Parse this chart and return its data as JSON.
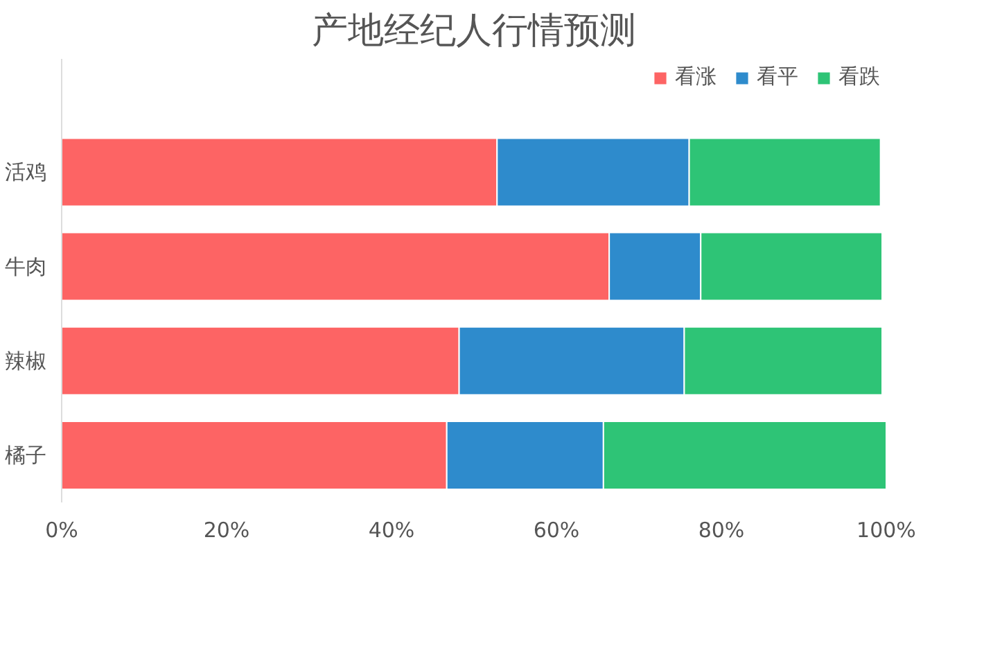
{
  "chart_data": {
    "type": "bar",
    "orientation": "horizontal",
    "stacked": true,
    "title": "产地经纪人行情预测",
    "categories": [
      "活鸡",
      "牛肉",
      "辣椒",
      "橘子"
    ],
    "series": [
      {
        "name": "看涨",
        "color": "#fd6464",
        "values": [
          52.8,
          66.4,
          48.2,
          46.7
        ]
      },
      {
        "name": "看平",
        "color": "#2e8bcc",
        "values": [
          23.3,
          11.1,
          27.3,
          19.0
        ]
      },
      {
        "name": "看跌",
        "color": "#2ec476",
        "values": [
          23.2,
          22.0,
          24.0,
          34.3
        ]
      }
    ],
    "xlim": [
      0,
      100
    ],
    "xticks": [
      {
        "value": 0,
        "label": "0%"
      },
      {
        "value": 20,
        "label": "20%"
      },
      {
        "value": 40,
        "label": "40%"
      },
      {
        "value": 60,
        "label": "60%"
      },
      {
        "value": 80,
        "label": "80%"
      },
      {
        "value": 100,
        "label": "100%"
      }
    ],
    "legend": "top right",
    "grid": false
  }
}
